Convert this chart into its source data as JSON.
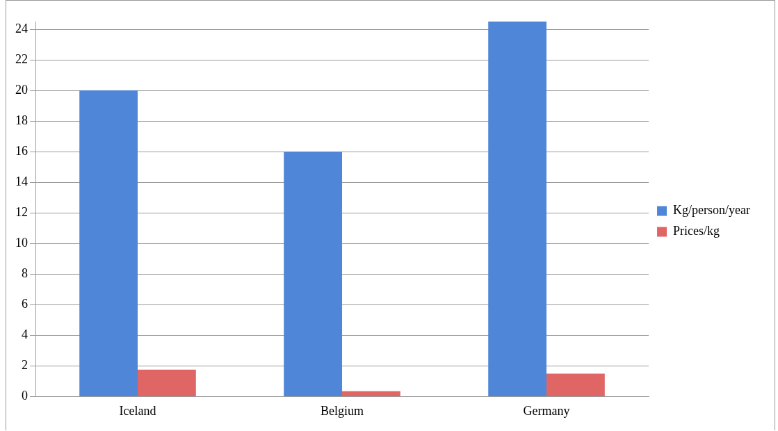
{
  "chart_data": {
    "type": "bar",
    "categories": [
      "Iceland",
      "Belgium",
      "Germany"
    ],
    "series": [
      {
        "name": "Kg/person/year",
        "color": "#4f86d8",
        "values": [
          20,
          16,
          24.5
        ]
      },
      {
        "name": "Prices/kg",
        "color": "#e06666",
        "values": [
          1.75,
          0.35,
          1.5
        ]
      }
    ],
    "ylim": [
      0,
      24.5
    ],
    "yticks": [
      0,
      2,
      4,
      6,
      8,
      10,
      12,
      14,
      16,
      18,
      20,
      22,
      24
    ],
    "grid": "y",
    "legend": "right"
  }
}
